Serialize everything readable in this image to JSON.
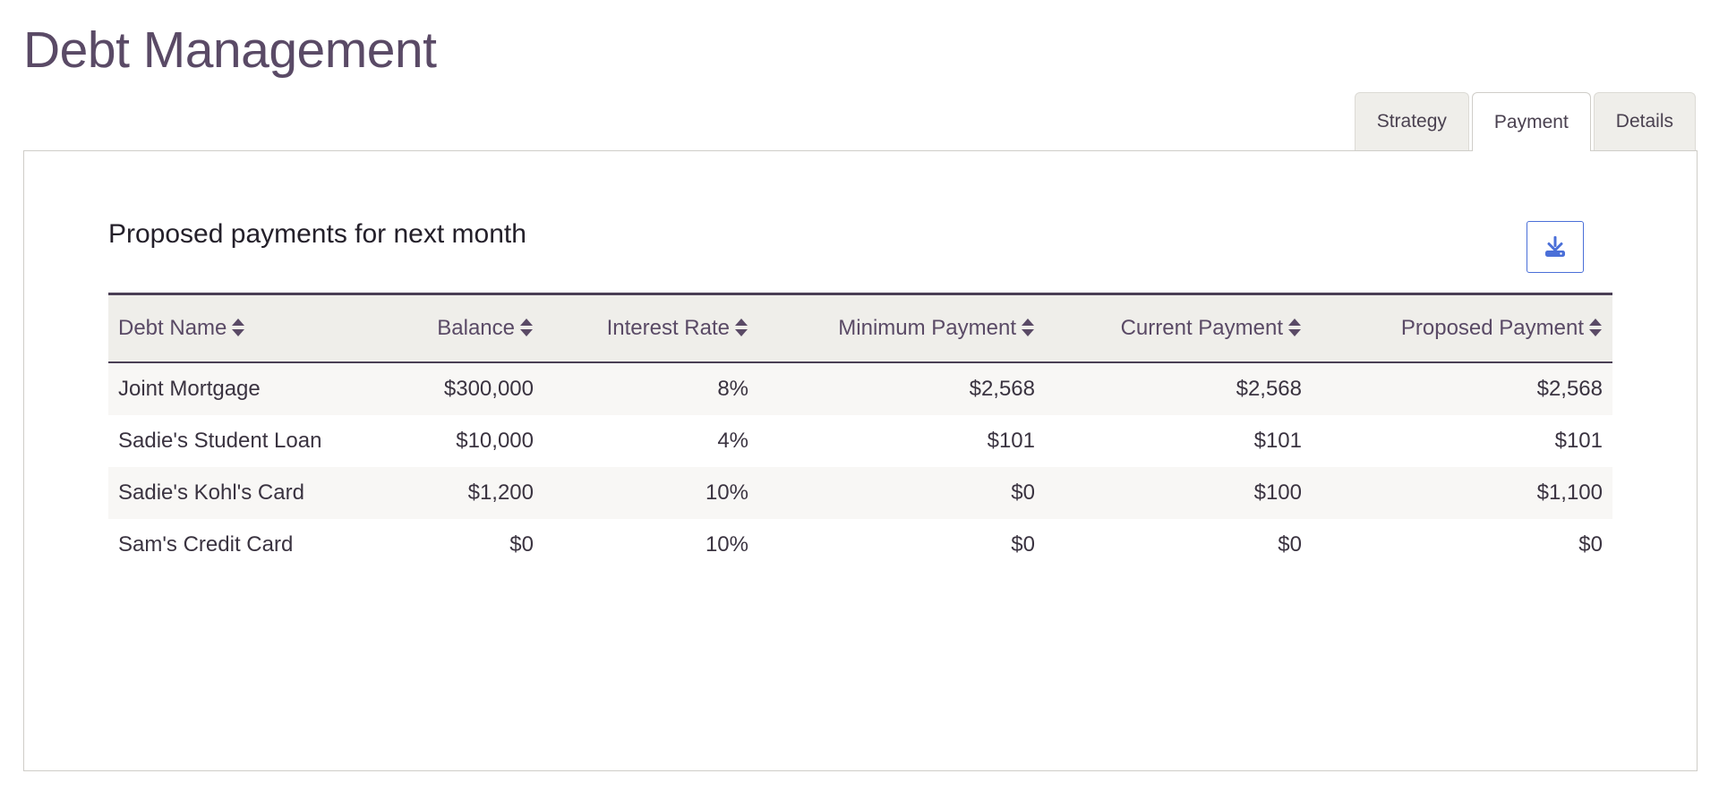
{
  "header": {
    "title": "Debt Management"
  },
  "tabs": [
    {
      "label": "Strategy",
      "active": false
    },
    {
      "label": "Payment",
      "active": true
    },
    {
      "label": "Details",
      "active": false
    }
  ],
  "panel": {
    "title": "Proposed payments for next month",
    "download_icon": "download-icon"
  },
  "table": {
    "columns": [
      {
        "label": "Debt Name",
        "align": "left"
      },
      {
        "label": "Balance",
        "align": "right"
      },
      {
        "label": "Interest Rate",
        "align": "right"
      },
      {
        "label": "Minimum Payment",
        "align": "right"
      },
      {
        "label": "Current Payment",
        "align": "right"
      },
      {
        "label": "Proposed Payment",
        "align": "right"
      }
    ],
    "rows": [
      {
        "cells": [
          "Joint Mortgage",
          "$300,000",
          "8%",
          "$2,568",
          "$2,568",
          "$2,568"
        ]
      },
      {
        "cells": [
          "Sadie's Student Loan",
          "$10,000",
          "4%",
          "$101",
          "$101",
          "$101"
        ]
      },
      {
        "cells": [
          "Sadie's Kohl's Card",
          "$1,200",
          "10%",
          "$0",
          "$100",
          "$1,100"
        ]
      },
      {
        "cells": [
          "Sam's Credit Card",
          "$0",
          "10%",
          "$0",
          "$0",
          "$0"
        ]
      }
    ]
  },
  "colors": {
    "title": "#5a4a66",
    "accent": "#4a6fd8",
    "header_rule": "#4a3f55"
  }
}
